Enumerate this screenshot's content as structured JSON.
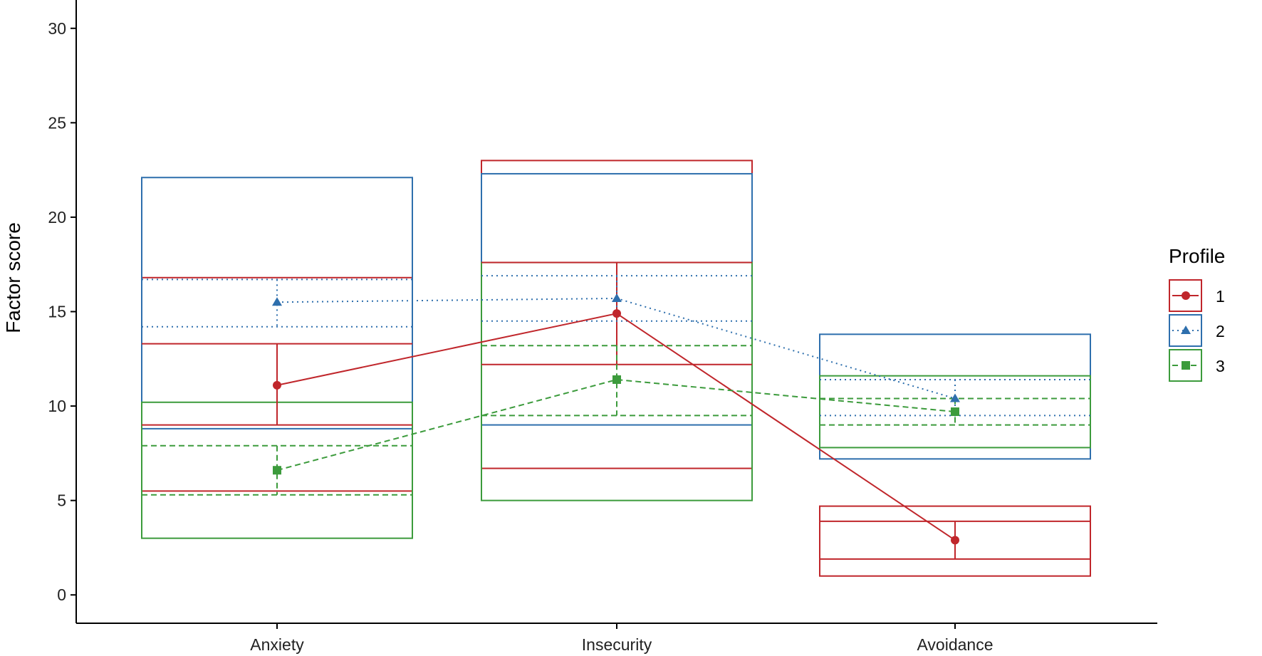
{
  "chart_data": {
    "type": "line",
    "xlabel": "",
    "ylabel": "Factor score",
    "ylim": [
      -1.5,
      31.5
    ],
    "yticks": [
      0,
      5,
      10,
      15,
      20,
      25,
      30
    ],
    "categories": [
      "Anxiety",
      "Insecurity",
      "Avoidance"
    ],
    "legend": {
      "title": "Profile",
      "position": "right"
    },
    "grid": false,
    "series": [
      {
        "name": "1",
        "color": "#c0262b",
        "marker": "circle",
        "line_style": "solid",
        "values": [
          11.1,
          14.9,
          2.9
        ],
        "error_low": [
          9.0,
          12.2,
          1.9
        ],
        "error_high": [
          13.3,
          17.6,
          3.9
        ],
        "range_low": [
          5.5,
          6.7,
          1.0
        ],
        "range_high": [
          16.8,
          23.0,
          4.7
        ]
      },
      {
        "name": "2",
        "color": "#2e6fad",
        "marker": "triangle",
        "line_style": "dotted",
        "values": [
          15.5,
          15.7,
          10.4
        ],
        "error_low": [
          14.2,
          14.5,
          9.5
        ],
        "error_high": [
          16.7,
          16.9,
          11.4
        ],
        "range_low": [
          8.8,
          9.0,
          7.2
        ],
        "range_high": [
          22.1,
          22.3,
          13.8
        ]
      },
      {
        "name": "3",
        "color": "#3c9b3c",
        "marker": "square",
        "line_style": "dashed",
        "values": [
          6.6,
          11.4,
          9.7
        ],
        "error_low": [
          5.3,
          9.5,
          9.0
        ],
        "error_high": [
          7.9,
          13.2,
          10.4
        ],
        "range_low": [
          3.0,
          5.0,
          7.8
        ],
        "range_high": [
          10.2,
          17.6,
          11.6
        ]
      }
    ]
  }
}
